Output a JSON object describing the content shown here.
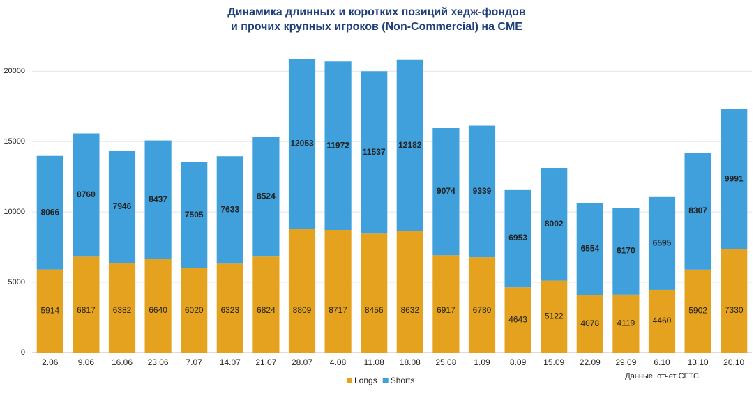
{
  "chart_data": {
    "type": "stacked_bar",
    "title": [
      "Динамика длинных и коротких позиций хедж-фондов",
      "и прочих крупных игроков (Non-Commercial) на CME"
    ],
    "source": "Данные: отчет CFTC.",
    "categories": [
      "2.06",
      "9.06",
      "16.06",
      "23.06",
      "7.07",
      "14.07",
      "21.07",
      "28.07",
      "4.08",
      "11.08",
      "18.08",
      "25.08",
      "1.09",
      "8.09",
      "15.09",
      "22.09",
      "29.09",
      "6.10",
      "13.10",
      "20.10"
    ],
    "series": [
      {
        "name": "Longs",
        "color": "#e5a21f",
        "values": [
          5914,
          6817,
          6382,
          6640,
          6020,
          6323,
          6824,
          8809,
          8717,
          8456,
          8632,
          6917,
          6780,
          4643,
          5122,
          4078,
          4119,
          4460,
          5902,
          7330
        ]
      },
      {
        "name": "Shorts",
        "color": "#3fa0dc",
        "values": [
          8066,
          8760,
          7946,
          8437,
          7505,
          7633,
          8524,
          12053,
          11972,
          11537,
          12182,
          9074,
          9339,
          6953,
          8002,
          6554,
          6170,
          6595,
          8307,
          9991
        ]
      }
    ],
    "ylim": [
      0,
      21000
    ],
    "yticks": [
      0,
      5000,
      10000,
      15000,
      20000
    ],
    "grid": true,
    "legend": "bottom"
  }
}
